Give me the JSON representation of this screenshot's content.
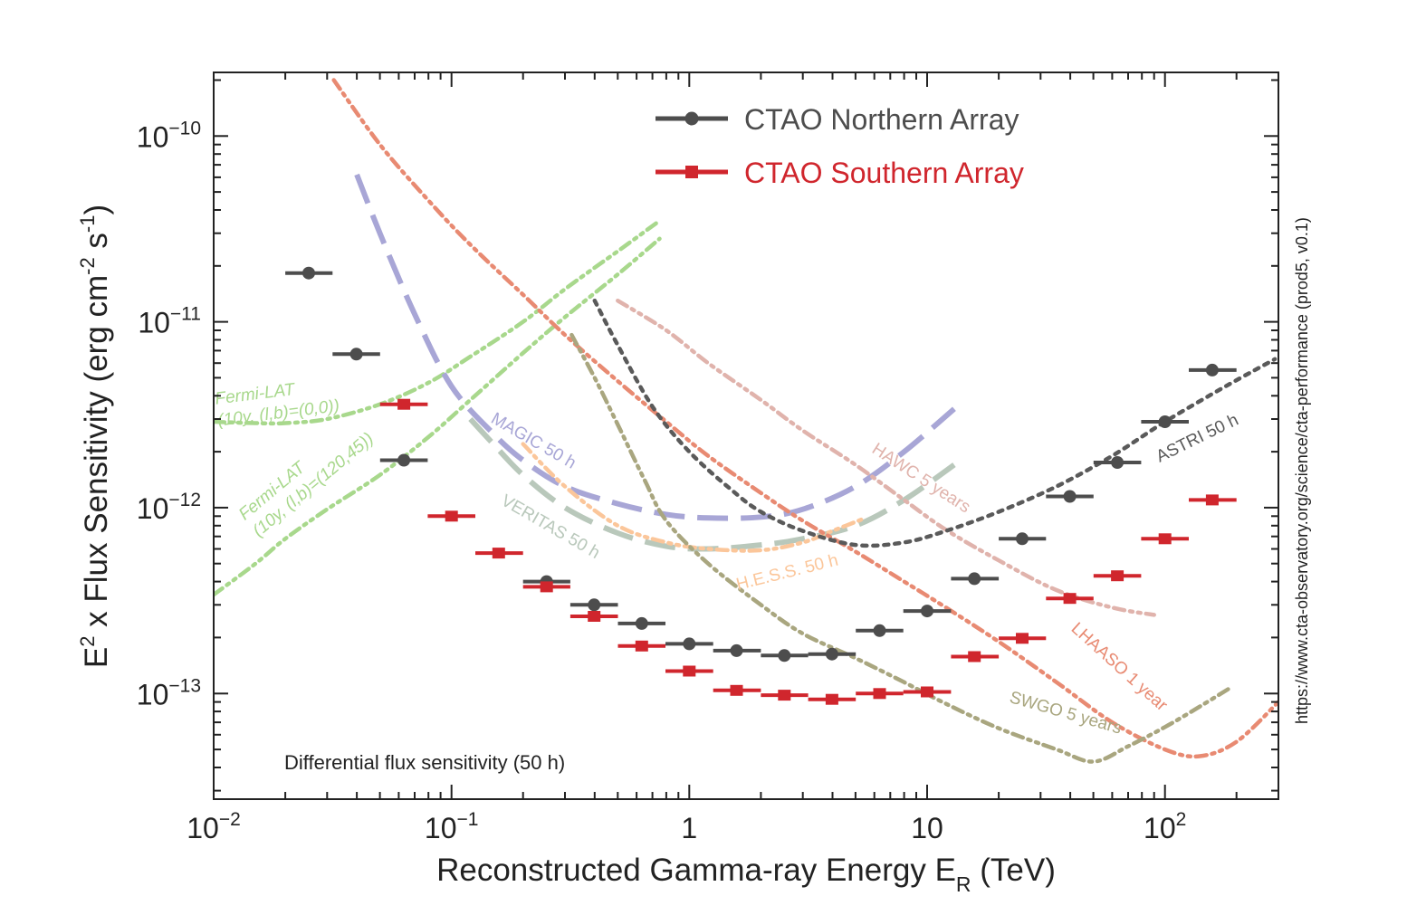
{
  "chart_data": {
    "type": "scatter",
    "xscale": "log",
    "yscale": "log",
    "xlim": [
      0.01,
      300
    ],
    "ylim": [
      2.7e-14,
      2.2e-10
    ],
    "xlabel_main": "Reconstructed Gamma-ray Energy E",
    "xlabel_sub": "R",
    "xlabel_unit": " (TeV)",
    "ylabel_parts": [
      {
        "t": "E",
        "s": "n"
      },
      {
        "t": "2",
        "s": "sup"
      },
      {
        "t": " x Flux Sensitivity (erg cm",
        "s": "n"
      },
      {
        "t": "-2",
        "s": "sup"
      },
      {
        "t": " s",
        "s": "n"
      },
      {
        "t": "-1",
        "s": "sup"
      },
      {
        "t": ")",
        "s": "n"
      }
    ],
    "x_ticks": [
      {
        "value": 0.01,
        "base": "10",
        "exp": "−2"
      },
      {
        "value": 0.1,
        "base": "10",
        "exp": "−1"
      },
      {
        "value": 1,
        "base": "1",
        "exp": ""
      },
      {
        "value": 10,
        "base": "10",
        "exp": ""
      },
      {
        "value": 100,
        "base": "10",
        "exp": "2"
      }
    ],
    "y_ticks": [
      {
        "value": 1e-10,
        "base": "10",
        "exp": "−10"
      },
      {
        "value": 1e-11,
        "base": "10",
        "exp": "−11"
      },
      {
        "value": 1e-12,
        "base": "10",
        "exp": "−12"
      },
      {
        "value": 1e-13,
        "base": "10",
        "exp": "−13"
      }
    ],
    "annotation": "Differential flux sensitivity (50 h)",
    "side_text": "https://www.cta-observatory.org/science/cta-performance (prod5, v0.1)",
    "legend": [
      {
        "label": "CTAO Northern Array",
        "color": "#4d4d4d",
        "marker": "circle"
      },
      {
        "label": "CTAO Southern Array",
        "color": "#d0262d",
        "marker": "square"
      }
    ],
    "series": [
      {
        "name": "CTAO Northern Array",
        "color": "#4d4d4d",
        "marker": "circle",
        "points": [
          {
            "x": 0.0251,
            "y": 1.83e-11,
            "xlo": 0.02,
            "xhi": 0.0316
          },
          {
            "x": 0.0398,
            "y": 6.7e-12,
            "xlo": 0.0316,
            "xhi": 0.0501
          },
          {
            "x": 0.0631,
            "y": 1.8e-12,
            "xlo": 0.0501,
            "xhi": 0.0794
          },
          {
            "x": 0.251,
            "y": 4e-13,
            "xlo": 0.2,
            "xhi": 0.316
          },
          {
            "x": 0.398,
            "y": 3e-13,
            "xlo": 0.316,
            "xhi": 0.501
          },
          {
            "x": 0.631,
            "y": 2.38e-13,
            "xlo": 0.501,
            "xhi": 0.794
          },
          {
            "x": 1.0,
            "y": 1.85e-13,
            "xlo": 0.794,
            "xhi": 1.26
          },
          {
            "x": 1.58,
            "y": 1.7e-13,
            "xlo": 1.26,
            "xhi": 2.0
          },
          {
            "x": 2.51,
            "y": 1.6e-13,
            "xlo": 2.0,
            "xhi": 3.16
          },
          {
            "x": 3.98,
            "y": 1.63e-13,
            "xlo": 3.16,
            "xhi": 5.01
          },
          {
            "x": 6.31,
            "y": 2.18e-13,
            "xlo": 5.01,
            "xhi": 7.94
          },
          {
            "x": 10.0,
            "y": 2.78e-13,
            "xlo": 7.94,
            "xhi": 12.6
          },
          {
            "x": 15.8,
            "y": 4.15e-13,
            "xlo": 12.6,
            "xhi": 20.0
          },
          {
            "x": 25.1,
            "y": 6.8e-13,
            "xlo": 20.0,
            "xhi": 31.6
          },
          {
            "x": 39.8,
            "y": 1.15e-12,
            "xlo": 31.6,
            "xhi": 50.1
          },
          {
            "x": 63.1,
            "y": 1.75e-12,
            "xlo": 50.1,
            "xhi": 79.4
          },
          {
            "x": 100,
            "y": 2.9e-12,
            "xlo": 79.4,
            "xhi": 126
          },
          {
            "x": 158,
            "y": 5.5e-12,
            "xlo": 126,
            "xhi": 200
          }
        ]
      },
      {
        "name": "CTAO Southern Array",
        "color": "#d0262d",
        "marker": "square",
        "points": [
          {
            "x": 0.0631,
            "y": 3.6e-12,
            "xlo": 0.0501,
            "xhi": 0.0794
          },
          {
            "x": 0.1,
            "y": 9e-13,
            "xlo": 0.0794,
            "xhi": 0.126
          },
          {
            "x": 0.158,
            "y": 5.7e-13,
            "xlo": 0.126,
            "xhi": 0.2
          },
          {
            "x": 0.251,
            "y": 3.75e-13,
            "xlo": 0.2,
            "xhi": 0.316
          },
          {
            "x": 0.398,
            "y": 2.6e-13,
            "xlo": 0.316,
            "xhi": 0.501
          },
          {
            "x": 0.631,
            "y": 1.8e-13,
            "xlo": 0.501,
            "xhi": 0.794
          },
          {
            "x": 1.0,
            "y": 1.32e-13,
            "xlo": 0.794,
            "xhi": 1.26
          },
          {
            "x": 1.58,
            "y": 1.04e-13,
            "xlo": 1.26,
            "xhi": 2.0
          },
          {
            "x": 2.51,
            "y": 9.8e-14,
            "xlo": 2.0,
            "xhi": 3.16
          },
          {
            "x": 3.98,
            "y": 9.3e-14,
            "xlo": 3.16,
            "xhi": 5.01
          },
          {
            "x": 6.31,
            "y": 1e-13,
            "xlo": 5.01,
            "xhi": 7.94
          },
          {
            "x": 10.0,
            "y": 1.02e-13,
            "xlo": 7.94,
            "xhi": 12.6
          },
          {
            "x": 15.8,
            "y": 1.58e-13,
            "xlo": 12.6,
            "xhi": 20.0
          },
          {
            "x": 25.1,
            "y": 1.98e-13,
            "xlo": 20.0,
            "xhi": 31.6
          },
          {
            "x": 39.8,
            "y": 3.25e-13,
            "xlo": 31.6,
            "xhi": 50.1
          },
          {
            "x": 63.1,
            "y": 4.3e-13,
            "xlo": 50.1,
            "xhi": 79.4
          },
          {
            "x": 100,
            "y": 6.8e-13,
            "xlo": 79.4,
            "xhi": 126
          },
          {
            "x": 158,
            "y": 1.1e-12,
            "xlo": 126,
            "xhi": 200
          }
        ]
      }
    ],
    "curves": [
      {
        "name": "Fermi-LAT (10y, (l,b)=(0,0))",
        "label_lines": [
          "Fermi-LAT",
          "(10y, (l,b)=(0,0))"
        ],
        "label_anchor": {
          "x": 0.0102,
          "y": 3.6e-12
        },
        "label_rotation": -7,
        "color": "#a8d88c",
        "style": "dashdot",
        "points": [
          [
            0.01,
            2.9e-12
          ],
          [
            0.015,
            2.85e-12
          ],
          [
            0.02,
            2.85e-12
          ],
          [
            0.03,
            3e-12
          ],
          [
            0.05,
            3.6e-12
          ],
          [
            0.08,
            4.7e-12
          ],
          [
            0.12,
            6.5e-12
          ],
          [
            0.2,
            1e-11
          ],
          [
            0.3,
            1.5e-11
          ],
          [
            0.5,
            2.4e-11
          ],
          [
            0.75,
            3.5e-11
          ]
        ]
      },
      {
        "name": "Fermi-LAT (10y, (l,b)=(120,45))",
        "label_lines": [
          "Fermi-LAT",
          "(10y, (l,b)=(120,45))"
        ],
        "label_anchor": {
          "x": 0.0135,
          "y": 8.5e-13
        },
        "label_rotation": -40,
        "color": "#a8d88c",
        "style": "dashdot",
        "points": [
          [
            0.01,
            3.4e-13
          ],
          [
            0.015,
            5e-13
          ],
          [
            0.02,
            6.8e-13
          ],
          [
            0.03,
            9.8e-13
          ],
          [
            0.05,
            1.5e-12
          ],
          [
            0.08,
            2.4e-12
          ],
          [
            0.12,
            3.8e-12
          ],
          [
            0.2,
            6.8e-12
          ],
          [
            0.3,
            1.06e-11
          ],
          [
            0.5,
            1.8e-11
          ],
          [
            0.75,
            2.8e-11
          ]
        ]
      },
      {
        "name": "MAGIC 50 h",
        "label_lines": [
          "MAGIC 50 h"
        ],
        "label_anchor": {
          "x": 0.145,
          "y": 2.9e-12
        },
        "label_rotation": 30,
        "color": "#a8a6d6",
        "style": "longdash",
        "points": [
          [
            0.04,
            6.2e-11
          ],
          [
            0.05,
            3e-11
          ],
          [
            0.07,
            1.1e-11
          ],
          [
            0.1,
            4.5e-12
          ],
          [
            0.15,
            2.5e-12
          ],
          [
            0.2,
            1.8e-12
          ],
          [
            0.3,
            1.3e-12
          ],
          [
            0.5,
            1.05e-12
          ],
          [
            0.8,
            9.2e-13
          ],
          [
            1.2,
            8.8e-13
          ],
          [
            2.0,
            8.9e-13
          ],
          [
            3.0,
            9.8e-13
          ],
          [
            5.0,
            1.3e-12
          ],
          [
            8.0,
            2e-12
          ],
          [
            13.0,
            3.4e-12
          ]
        ]
      },
      {
        "name": "VERITAS 50 h",
        "label_lines": [
          "VERITAS 50 h"
        ],
        "label_anchor": {
          "x": 0.16,
          "y": 1.05e-12
        },
        "label_rotation": 30,
        "color": "#b9c8bb",
        "style": "longdash",
        "points": [
          [
            0.12,
            3e-12
          ],
          [
            0.15,
            2.2e-12
          ],
          [
            0.2,
            1.5e-12
          ],
          [
            0.3,
            1e-12
          ],
          [
            0.5,
            7.3e-13
          ],
          [
            0.8,
            6.2e-13
          ],
          [
            1.2,
            6e-13
          ],
          [
            2.0,
            6.3e-13
          ],
          [
            3.0,
            6.8e-13
          ],
          [
            5.0,
            8e-13
          ],
          [
            8.0,
            1.1e-12
          ],
          [
            13.0,
            1.7e-12
          ]
        ]
      },
      {
        "name": "H.E.S.S. 50 h",
        "label_lines": [
          "H.E.S.S. 50 h"
        ],
        "label_anchor": {
          "x": 1.6,
          "y": 3.6e-13
        },
        "label_rotation": -14,
        "color": "#fbc69a",
        "style": "dashdot",
        "points": [
          [
            0.2,
            2.2e-12
          ],
          [
            0.3,
            1.3e-12
          ],
          [
            0.5,
            8e-13
          ],
          [
            0.8,
            6.5e-13
          ],
          [
            1.2,
            6e-13
          ],
          [
            2.0,
            5.9e-13
          ],
          [
            3.0,
            6.5e-13
          ],
          [
            4.0,
            7.5e-13
          ],
          [
            5.5,
            8.8e-13
          ]
        ]
      },
      {
        "name": "HAWC 5 years",
        "label_lines": [
          "HAWC 5 years"
        ],
        "label_anchor": {
          "x": 5.8,
          "y": 2e-12
        },
        "label_rotation": 33,
        "color": "#e0b3ac",
        "style": "dashdot",
        "points": [
          [
            0.5,
            1.3e-11
          ],
          [
            0.8,
            9e-12
          ],
          [
            1.2,
            6e-12
          ],
          [
            2.0,
            3.8e-12
          ],
          [
            3.0,
            2.6e-12
          ],
          [
            5.0,
            1.7e-12
          ],
          [
            8.0,
            1.1e-12
          ],
          [
            12.0,
            7.6e-13
          ],
          [
            20.0,
            5.2e-13
          ],
          [
            35.0,
            3.6e-13
          ],
          [
            60.0,
            2.9e-13
          ],
          [
            90.0,
            2.65e-13
          ]
        ]
      },
      {
        "name": "LHAASO 1 year",
        "label_lines": [
          "LHAASO 1 year"
        ],
        "label_anchor": {
          "x": 40.0,
          "y": 2.2e-13
        },
        "label_rotation": 42,
        "color": "#e88a72",
        "style": "dashdot",
        "points": [
          [
            0.032,
            2e-10
          ],
          [
            0.05,
            9e-11
          ],
          [
            0.08,
            4.5e-11
          ],
          [
            0.12,
            2.6e-11
          ],
          [
            0.2,
            1.4e-11
          ],
          [
            0.3,
            8.5e-12
          ],
          [
            0.5,
            4.8e-12
          ],
          [
            0.8,
            2.9e-12
          ],
          [
            1.2,
            1.9e-12
          ],
          [
            2.0,
            1.2e-12
          ],
          [
            3.0,
            8.5e-13
          ],
          [
            5.0,
            5.8e-13
          ],
          [
            8.0,
            4e-13
          ],
          [
            12.0,
            2.9e-13
          ],
          [
            20.0,
            1.9e-13
          ],
          [
            35.0,
            1.15e-13
          ],
          [
            60.0,
            7e-14
          ],
          [
            100.0,
            5e-14
          ],
          [
            140.0,
            4.6e-14
          ],
          [
            200.0,
            5.5e-14
          ],
          [
            300.0,
            9e-14
          ]
        ]
      },
      {
        "name": "SWGO 5 years",
        "label_lines": [
          "SWGO 5 years"
        ],
        "label_anchor": {
          "x": 22.0,
          "y": 9e-14
        },
        "label_rotation": 16,
        "color": "#a9a67f",
        "style": "dashdot",
        "points": [
          [
            0.32,
            8.5e-12
          ],
          [
            0.4,
            5e-12
          ],
          [
            0.5,
            2.8e-12
          ],
          [
            0.65,
            1.4e-12
          ],
          [
            0.8,
            8.5e-13
          ],
          [
            1.2,
            5e-13
          ],
          [
            2.0,
            3e-13
          ],
          [
            3.0,
            2.1e-13
          ],
          [
            5.0,
            1.55e-13
          ],
          [
            8.0,
            1.15e-13
          ],
          [
            12.0,
            8.8e-14
          ],
          [
            20.0,
            6.5e-14
          ],
          [
            35.0,
            5e-14
          ],
          [
            50.0,
            4.3e-14
          ],
          [
            70.0,
            5.2e-14
          ],
          [
            100.0,
            6.6e-14
          ],
          [
            140.0,
            8.5e-14
          ],
          [
            190.0,
            1.08e-13
          ]
        ]
      },
      {
        "name": "ASTRI 50 h",
        "label_lines": [
          "ASTRI 50 h"
        ],
        "label_anchor": {
          "x": 95.0,
          "y": 1.75e-12
        },
        "label_rotation": -26,
        "color": "#5a5a5a",
        "style": "dotted",
        "points": [
          [
            0.4,
            1.3e-11
          ],
          [
            0.5,
            7.5e-12
          ],
          [
            0.7,
            3.5e-12
          ],
          [
            1.0,
            2e-12
          ],
          [
            1.5,
            1.25e-12
          ],
          [
            2.0,
            9.5e-13
          ],
          [
            3.0,
            7.5e-13
          ],
          [
            5.0,
            6.3e-13
          ],
          [
            8.0,
            6.5e-13
          ],
          [
            12.0,
            7.5e-13
          ],
          [
            20.0,
            9.5e-13
          ],
          [
            35.0,
            1.3e-12
          ],
          [
            60.0,
            1.9e-12
          ],
          [
            100.0,
            2.9e-12
          ],
          [
            180.0,
            4.5e-12
          ],
          [
            290.0,
            6.3e-12
          ]
        ]
      }
    ]
  }
}
